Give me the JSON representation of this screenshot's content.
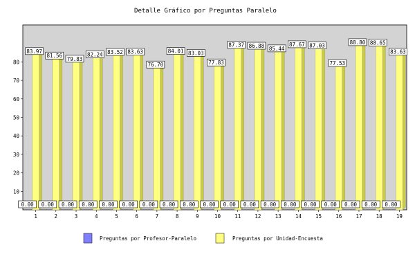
{
  "chart_data": {
    "type": "bar",
    "title": "Detalle Gráfico por Preguntas Paralelo",
    "xlabel": "",
    "ylabel": "",
    "categories": [
      "1",
      "2",
      "3",
      "4",
      "5",
      "6",
      "7",
      "8",
      "9",
      "10",
      "11",
      "12",
      "13",
      "14",
      "15",
      "16",
      "17",
      "18",
      "19"
    ],
    "ylim": [
      0,
      100
    ],
    "yticks": [
      10,
      20,
      30,
      40,
      50,
      60,
      70,
      80
    ],
    "grid": "none",
    "legend_position": "bottom",
    "series": [
      {
        "name": "Preguntas por Profesor-Paralelo",
        "color": "#8080ff",
        "values": [
          0,
          0,
          0,
          0,
          0,
          0,
          0,
          0,
          0,
          0,
          0,
          0,
          0,
          0,
          0,
          0,
          0,
          0,
          0
        ],
        "labels": [
          "0.00",
          "0.00",
          "0.00",
          "0.00",
          "0.00",
          "0.00",
          "0.00",
          "0.00",
          "0.00",
          "0.00",
          "0.00",
          "0.00",
          "0.00",
          "0.00",
          "0.00",
          "0.00",
          "0.00",
          "0.00",
          "0.00"
        ]
      },
      {
        "name": "Preguntas por Unidad-Encuesta",
        "color": "#ffff80",
        "values": [
          83.97,
          81.56,
          79.83,
          82.24,
          83.52,
          83.63,
          76.7,
          84.01,
          83.03,
          77.83,
          87.37,
          86.88,
          85.44,
          87.67,
          87.03,
          77.53,
          88.8,
          88.65,
          83.63
        ],
        "labels": [
          "83.97",
          "81.56",
          "79.83",
          "82.24",
          "83.52",
          "83.63",
          "76.70",
          "84.01",
          "83.03",
          "77.83",
          "87.37",
          "86.88",
          "85.44",
          "87.67",
          "87.03",
          "77.53",
          "88.80",
          "88.65",
          "83.63"
        ]
      }
    ],
    "plot_background": "#d3d3d3"
  }
}
